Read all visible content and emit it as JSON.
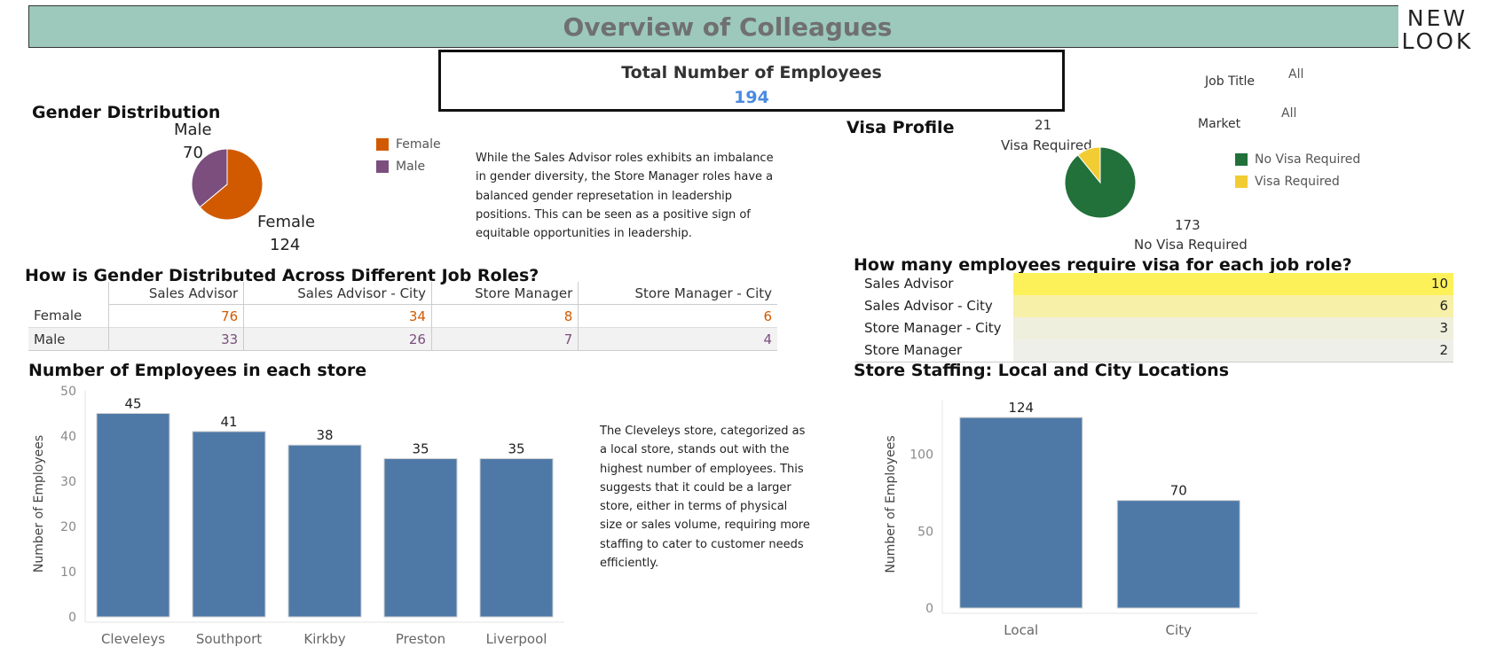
{
  "banner": {
    "title": "Overview of Colleagues",
    "logo_line1": "NEW",
    "logo_line2": "LOOK"
  },
  "kpi": {
    "title": "Total Number of Employees",
    "value": "194"
  },
  "filters": [
    {
      "label": "Job Title",
      "value": "All"
    },
    {
      "label": "Market",
      "value": "All"
    }
  ],
  "gender": {
    "title": "Gender Distribution",
    "legend": [
      {
        "label": "Female",
        "color": "#d15a00"
      },
      {
        "label": "Male",
        "color": "#7b4e7e"
      }
    ],
    "labels": {
      "male_name": "Male",
      "male_value": "70",
      "female_name": "Female",
      "female_value": "124"
    },
    "note": "While the Sales Advisor roles exhibits an imbalance in gender diversity, the Store Manager roles have a balanced gender represetation in leadership positions. This can be seen as a positive sign of equitable opportunities in leadership."
  },
  "visa": {
    "title": "Visa Profile",
    "legend": [
      {
        "label": "No Visa Required",
        "color": "#22703a"
      },
      {
        "label": "Visa Required",
        "color": "#f2cc33"
      }
    ],
    "labels": {
      "req_value": "21",
      "req_name": "Visa Required",
      "no_value": "173",
      "no_name": "No Visa Required"
    }
  },
  "gender_table": {
    "title": "How is Gender Distributed Across Different Job Roles?",
    "columns": [
      "Sales Advisor",
      "Sales Advisor - City",
      "Store Manager",
      "Store Manager - City"
    ],
    "rows": [
      {
        "label": "Female",
        "values": [
          "76",
          "34",
          "8",
          "6"
        ],
        "color": "#d15a00"
      },
      {
        "label": "Male",
        "values": [
          "33",
          "26",
          "7",
          "4"
        ],
        "color": "#7b4e7e"
      }
    ]
  },
  "visa_table": {
    "title": "How many employees require visa for each job role?",
    "rows": [
      {
        "label": "Sales Advisor",
        "value": "10",
        "color": "#fdf15a"
      },
      {
        "label": "Sales Advisor - City",
        "value": "6",
        "color": "#f7f0a8"
      },
      {
        "label": "Store Manager - City",
        "value": "3",
        "color": "#efefdd"
      },
      {
        "label": "Store Manager",
        "value": "2",
        "color": "#efefea"
      }
    ]
  },
  "store_note": "The Cleveleys store, categorized as a local store, stands out with the highest number of employees. This suggests that it could be a larger store, either in terms of physical size or sales volume, requiring more staffing to cater to customer needs efficiently.",
  "chart_data": [
    {
      "type": "pie",
      "title": "Gender Distribution",
      "categories": [
        "Female",
        "Male"
      ],
      "values": [
        124,
        70
      ],
      "colors": [
        "#d15a00",
        "#7b4e7e"
      ]
    },
    {
      "type": "pie",
      "title": "Visa Profile",
      "categories": [
        "No Visa Required",
        "Visa Required"
      ],
      "values": [
        173,
        21
      ],
      "colors": [
        "#22703a",
        "#f2cc33"
      ]
    },
    {
      "type": "table",
      "title": "How is Gender Distributed Across Different Job Roles?",
      "columns": [
        "Sales Advisor",
        "Sales Advisor - City",
        "Store Manager",
        "Store Manager - City"
      ],
      "series": [
        {
          "name": "Female",
          "values": [
            76,
            34,
            8,
            6
          ]
        },
        {
          "name": "Male",
          "values": [
            33,
            26,
            7,
            4
          ]
        }
      ]
    },
    {
      "type": "table",
      "title": "How many employees require visa for each job role?",
      "categories": [
        "Sales Advisor",
        "Sales Advisor - City",
        "Store Manager - City",
        "Store Manager"
      ],
      "values": [
        10,
        6,
        3,
        2
      ]
    },
    {
      "type": "bar",
      "title": "Number of Employees in each store",
      "categories": [
        "Cleveleys",
        "Southport",
        "Kirkby",
        "Preston",
        "Liverpool"
      ],
      "values": [
        45,
        41,
        38,
        35,
        35
      ],
      "ylabel": "Number of Employees",
      "ylim": [
        0,
        50
      ],
      "yticks": [
        0,
        10,
        20,
        30,
        40,
        50
      ],
      "color": "#4e79a7"
    },
    {
      "type": "bar",
      "title": "Store Staffing: Local and City Locations",
      "categories": [
        "Local",
        "City"
      ],
      "values": [
        124,
        70
      ],
      "ylabel": "Number of Employees",
      "ylim": [
        0,
        135
      ],
      "yticks": [
        0,
        50,
        100
      ],
      "color": "#4e79a7"
    }
  ]
}
